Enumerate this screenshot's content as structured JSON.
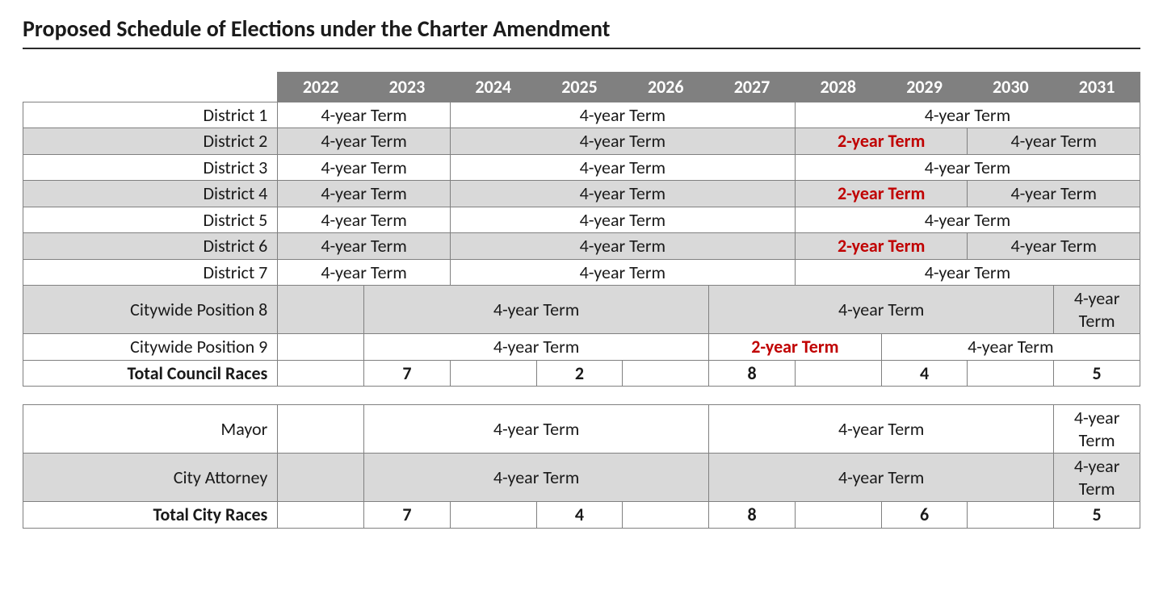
{
  "title": "Proposed Schedule of Elections under the Charter Amendment",
  "years": [
    "2022",
    "2023",
    "2024",
    "2025",
    "2026",
    "2027",
    "2028",
    "2029",
    "2030",
    "2031"
  ],
  "labels": {
    "d1": "District 1",
    "d2": "District 2",
    "d3": "District 3",
    "d4": "District 4",
    "d5": "District 5",
    "d6": "District 6",
    "d7": "District 7",
    "p8": "Citywide Position 8",
    "p9": "Citywide Position 9",
    "tcouncil": "Total Council Races",
    "mayor": "Mayor",
    "atty": "City Attorney",
    "tcity": "Total City Races"
  },
  "terms": {
    "t4": "4-year Term",
    "t2": "2-year Term"
  },
  "totals": {
    "council": {
      "c2023": "7",
      "c2025": "2",
      "c2027": "8",
      "c2029": "4",
      "c2031": "5"
    },
    "city": {
      "c2023": "7",
      "c2025": "4",
      "c2027": "8",
      "c2029": "6",
      "c2031": "5"
    }
  },
  "style": {
    "header_bg": "#808080",
    "header_text": "#ffffff",
    "shade_bg": "#d9d9d9",
    "border_color": "#808080",
    "red_text": "#c00000",
    "title_fontsize": 28,
    "body_fontsize": 22,
    "rowlabel_width_pct": 22.8,
    "year_col_width_pct": 7.72
  },
  "structure": {
    "type": "table",
    "year_columns": 10,
    "rows": [
      {
        "label": "d1",
        "shade": false,
        "cells": [
          {
            "span": 2,
            "term": "t4"
          },
          {
            "span": 4,
            "term": "t4"
          },
          {
            "span": 4,
            "term": "t4"
          }
        ]
      },
      {
        "label": "d2",
        "shade": true,
        "cells": [
          {
            "span": 2,
            "term": "t4"
          },
          {
            "span": 4,
            "term": "t4"
          },
          {
            "span": 2,
            "term": "t2",
            "red": true
          },
          {
            "span": 2,
            "term": "t4"
          }
        ]
      },
      {
        "label": "d3",
        "shade": false,
        "cells": [
          {
            "span": 2,
            "term": "t4"
          },
          {
            "span": 4,
            "term": "t4"
          },
          {
            "span": 4,
            "term": "t4"
          }
        ]
      },
      {
        "label": "d4",
        "shade": true,
        "cells": [
          {
            "span": 2,
            "term": "t4"
          },
          {
            "span": 4,
            "term": "t4"
          },
          {
            "span": 2,
            "term": "t2",
            "red": true
          },
          {
            "span": 2,
            "term": "t4"
          }
        ]
      },
      {
        "label": "d5",
        "shade": false,
        "cells": [
          {
            "span": 2,
            "term": "t4"
          },
          {
            "span": 4,
            "term": "t4"
          },
          {
            "span": 4,
            "term": "t4"
          }
        ]
      },
      {
        "label": "d6",
        "shade": true,
        "cells": [
          {
            "span": 2,
            "term": "t4"
          },
          {
            "span": 4,
            "term": "t4"
          },
          {
            "span": 2,
            "term": "t2",
            "red": true
          },
          {
            "span": 2,
            "term": "t4"
          }
        ]
      },
      {
        "label": "d7",
        "shade": false,
        "cells": [
          {
            "span": 2,
            "term": "t4"
          },
          {
            "span": 4,
            "term": "t4"
          },
          {
            "span": 4,
            "term": "t4"
          }
        ]
      },
      {
        "label": "p8",
        "shade": true,
        "cells": [
          {
            "span": 1,
            "empty": true
          },
          {
            "span": 4,
            "term": "t4"
          },
          {
            "span": 4,
            "term": "t4"
          },
          {
            "span": 1,
            "term": "t4"
          }
        ]
      },
      {
        "label": "p9",
        "shade": false,
        "cells": [
          {
            "span": 1,
            "empty": true
          },
          {
            "span": 4,
            "term": "t4"
          },
          {
            "span": 2,
            "term": "t2",
            "red": true
          },
          {
            "span": 3,
            "term": "t4"
          }
        ]
      }
    ],
    "rows2": [
      {
        "label": "mayor",
        "shade": false,
        "cells": [
          {
            "span": 1,
            "empty": true
          },
          {
            "span": 4,
            "term": "t4"
          },
          {
            "span": 4,
            "term": "t4"
          },
          {
            "span": 1,
            "term": "t4"
          }
        ]
      },
      {
        "label": "atty",
        "shade": true,
        "cells": [
          {
            "span": 1,
            "empty": true
          },
          {
            "span": 4,
            "term": "t4"
          },
          {
            "span": 4,
            "term": "t4"
          },
          {
            "span": 1,
            "term": "t4"
          }
        ]
      }
    ]
  }
}
